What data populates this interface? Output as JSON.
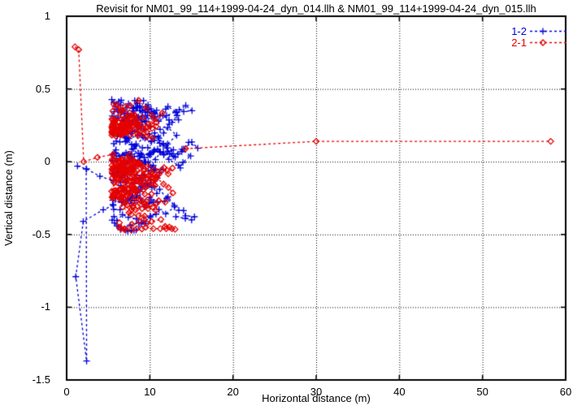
{
  "chart_data": {
    "type": "scatter",
    "title": "Revisit for NM01_99_114+1999-04-24_dyn_014.llh & NM01_99_114+1999-04-24_dyn_015.llh",
    "xlabel": "Horizontal distance (m)",
    "ylabel": "Vertical distance (m)",
    "xlim": [
      0,
      60
    ],
    "ylim": [
      -1.5,
      1
    ],
    "x_ticks": [
      0,
      10,
      20,
      30,
      40,
      50,
      60
    ],
    "y_ticks": [
      1,
      0.5,
      0,
      -0.5,
      -1,
      -1.5
    ],
    "grid": true,
    "grid_style": "dotted",
    "line_style": "dashed",
    "legend_position": "top-right-inside",
    "axis_color": "#000000",
    "background_color": "#ffffff",
    "series": [
      {
        "name": "1-2",
        "color": "#0000d9",
        "marker": "plus",
        "paths": [
          [
            [
              5.6,
              -0.3
            ],
            [
              4.4,
              -0.33
            ],
            [
              2.0,
              -0.41
            ],
            [
              1.1,
              -0.79
            ],
            [
              2.4,
              -1.37
            ],
            [
              2.35,
              -0.05
            ]
          ],
          [
            [
              1.3,
              -0.03
            ],
            [
              2.4,
              -0.05
            ],
            [
              4.0,
              -0.1
            ],
            [
              5.6,
              -0.13
            ]
          ]
        ],
        "cluster": {
          "seed": 20,
          "trails": 15,
          "points_per_trail": 22,
          "x_min": 5.4,
          "x_max": 16.2,
          "y_min": -0.48,
          "y_max": 0.43,
          "bias": "uniform"
        }
      },
      {
        "name": "2-1",
        "color": "#e60000",
        "marker": "diamond",
        "paths": [
          [
            [
              1.0,
              0.79
            ],
            [
              1.45,
              0.77
            ],
            [
              2.05,
              0.0
            ],
            [
              3.7,
              0.03
            ],
            [
              5.6,
              0.05
            ]
          ],
          [
            [
              14.3,
              0.09
            ],
            [
              30.0,
              0.14
            ],
            [
              58.2,
              0.14
            ]
          ]
        ],
        "cluster": {
          "seed": 77,
          "trails": 15,
          "points_per_trail": 22,
          "x_min": 5.4,
          "x_max": 14.8,
          "y_min": -0.47,
          "y_max": 0.47,
          "bias": "left"
        }
      }
    ]
  }
}
